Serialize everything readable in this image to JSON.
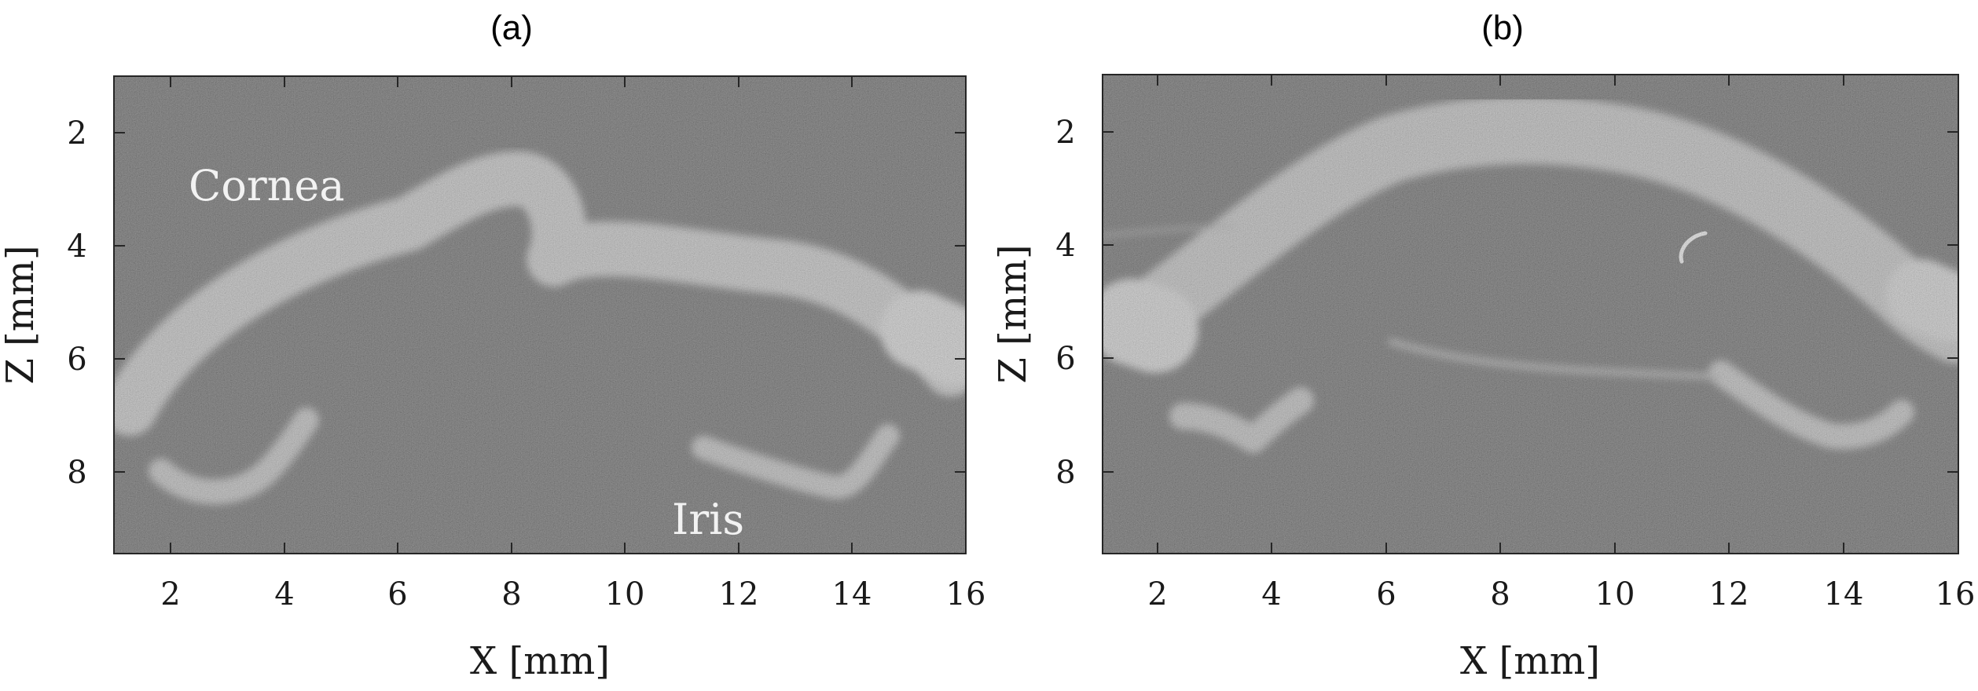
{
  "panels": [
    {
      "title": "(a)",
      "xlabel": "X [mm]",
      "ylabel": "Z [mm]",
      "xticks": [
        "2",
        "4",
        "6",
        "8",
        "10",
        "12",
        "14",
        "16"
      ],
      "yticks": [
        "2",
        "4",
        "6",
        "8"
      ],
      "annotations": {
        "cornea": "Cornea",
        "iris": "Iris"
      }
    },
    {
      "title": "(b)",
      "xlabel": "X [mm]",
      "ylabel": "Z [mm]",
      "xticks": [
        "2",
        "4",
        "6",
        "8",
        "10",
        "12",
        "14",
        "16"
      ],
      "yticks": [
        "2",
        "4",
        "6",
        "8"
      ]
    }
  ],
  "scene": {
    "background_color": "#393939",
    "tissue_color": "#bdbdbd",
    "colormap": "grayscale OCT"
  }
}
